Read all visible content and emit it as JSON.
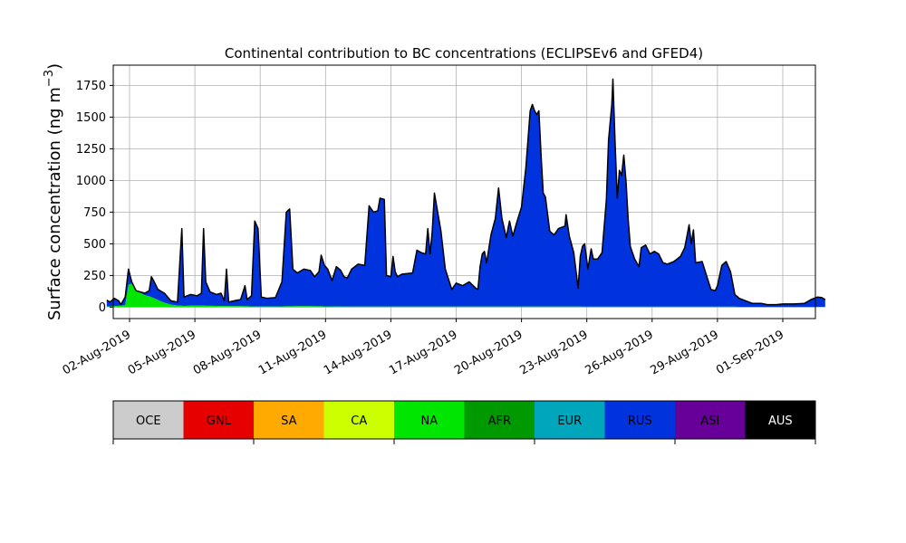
{
  "chart_data": {
    "type": "area",
    "title": "Continental contribution to BC concentrations (ECLIPSEv6 and GFED4)",
    "ylabel": "Surface concentration (ng m",
    "ylabel_sup": "−3",
    "ylabel_close": ")",
    "xlabel": "",
    "x_unit": "days (decimal) from 01-Aug-2019",
    "xlim": [
      0.25,
      32.5
    ],
    "ylim": [
      -90,
      1910
    ],
    "grid": true,
    "x_ticks": [
      {
        "x": 1,
        "label": "02-Aug-2019"
      },
      {
        "x": 4,
        "label": "05-Aug-2019"
      },
      {
        "x": 7,
        "label": "08-Aug-2019"
      },
      {
        "x": 10,
        "label": "11-Aug-2019"
      },
      {
        "x": 13,
        "label": "14-Aug-2019"
      },
      {
        "x": 16,
        "label": "17-Aug-2019"
      },
      {
        "x": 19,
        "label": "20-Aug-2019"
      },
      {
        "x": 22,
        "label": "23-Aug-2019"
      },
      {
        "x": 25,
        "label": "26-Aug-2019"
      },
      {
        "x": 28,
        "label": "29-Aug-2019"
      },
      {
        "x": 31,
        "label": "01-Sep-2019"
      }
    ],
    "y_ticks": [
      0,
      250,
      500,
      750,
      1000,
      1250,
      1500,
      1750
    ],
    "legend_position": "below",
    "legend": [
      {
        "name": "OCE",
        "color": "#cccccc"
      },
      {
        "name": "GNL",
        "color": "#e60000"
      },
      {
        "name": "SA",
        "color": "#ffaa00"
      },
      {
        "name": "CA",
        "color": "#ccff00"
      },
      {
        "name": "NA",
        "color": "#00e600"
      },
      {
        "name": "AFR",
        "color": "#009900"
      },
      {
        "name": "EUR",
        "color": "#00a6bb"
      },
      {
        "name": "RUS",
        "color": "#0033dd"
      },
      {
        "name": "ASI",
        "color": "#660099"
      },
      {
        "name": "AUS",
        "color": "#000000"
      }
    ],
    "series": [
      {
        "name": "NA",
        "color": "#00e600",
        "points": [
          [
            -0.05,
            5
          ],
          [
            0.3,
            8
          ],
          [
            0.8,
            15
          ],
          [
            1.0,
            230
          ],
          [
            1.2,
            140
          ],
          [
            1.6,
            100
          ],
          [
            2.0,
            80
          ],
          [
            2.5,
            40
          ],
          [
            3.0,
            15
          ],
          [
            3.5,
            10
          ],
          [
            4.0,
            12
          ],
          [
            5.0,
            10
          ],
          [
            6.0,
            8
          ],
          [
            7.0,
            5
          ],
          [
            9.0,
            8
          ],
          [
            11.0,
            5
          ],
          [
            31.0,
            3
          ]
        ]
      },
      {
        "name": "RUS",
        "color": "#0033dd",
        "points": [
          [
            -0.05,
            55
          ],
          [
            0.1,
            40
          ],
          [
            0.3,
            70
          ],
          [
            0.5,
            50
          ],
          [
            0.6,
            20
          ],
          [
            0.8,
            80
          ],
          [
            0.95,
            300
          ],
          [
            1.1,
            200
          ],
          [
            1.3,
            130
          ],
          [
            1.7,
            110
          ],
          [
            1.9,
            130
          ],
          [
            2.0,
            240
          ],
          [
            2.1,
            210
          ],
          [
            2.3,
            140
          ],
          [
            2.6,
            110
          ],
          [
            2.9,
            50
          ],
          [
            3.2,
            40
          ],
          [
            3.4,
            620
          ],
          [
            3.5,
            80
          ],
          [
            3.8,
            100
          ],
          [
            4.1,
            90
          ],
          [
            4.3,
            110
          ],
          [
            4.4,
            620
          ],
          [
            4.5,
            200
          ],
          [
            4.7,
            120
          ],
          [
            5.0,
            100
          ],
          [
            5.2,
            110
          ],
          [
            5.35,
            50
          ],
          [
            5.45,
            300
          ],
          [
            5.55,
            40
          ],
          [
            5.8,
            50
          ],
          [
            6.1,
            60
          ],
          [
            6.3,
            170
          ],
          [
            6.4,
            60
          ],
          [
            6.6,
            90
          ],
          [
            6.75,
            680
          ],
          [
            6.9,
            620
          ],
          [
            7.05,
            80
          ],
          [
            7.3,
            70
          ],
          [
            7.7,
            75
          ],
          [
            8.0,
            200
          ],
          [
            8.2,
            750
          ],
          [
            8.35,
            775
          ],
          [
            8.5,
            300
          ],
          [
            8.7,
            270
          ],
          [
            9.0,
            300
          ],
          [
            9.3,
            290
          ],
          [
            9.5,
            240
          ],
          [
            9.7,
            280
          ],
          [
            9.8,
            410
          ],
          [
            9.95,
            330
          ],
          [
            10.1,
            300
          ],
          [
            10.3,
            210
          ],
          [
            10.5,
            320
          ],
          [
            10.7,
            290
          ],
          [
            10.85,
            240
          ],
          [
            11.0,
            230
          ],
          [
            11.2,
            300
          ],
          [
            11.5,
            340
          ],
          [
            11.8,
            330
          ],
          [
            12.0,
            800
          ],
          [
            12.2,
            750
          ],
          [
            12.4,
            760
          ],
          [
            12.5,
            860
          ],
          [
            12.7,
            850
          ],
          [
            12.8,
            250
          ],
          [
            13.0,
            240
          ],
          [
            13.1,
            400
          ],
          [
            13.2,
            280
          ],
          [
            13.3,
            240
          ],
          [
            13.5,
            260
          ],
          [
            14.0,
            270
          ],
          [
            14.2,
            450
          ],
          [
            14.4,
            430
          ],
          [
            14.6,
            420
          ],
          [
            14.7,
            620
          ],
          [
            14.8,
            420
          ],
          [
            14.9,
            600
          ],
          [
            15.0,
            900
          ],
          [
            15.15,
            750
          ],
          [
            15.3,
            600
          ],
          [
            15.5,
            300
          ],
          [
            15.8,
            140
          ],
          [
            16.0,
            190
          ],
          [
            16.3,
            170
          ],
          [
            16.6,
            200
          ],
          [
            16.9,
            150
          ],
          [
            17.0,
            140
          ],
          [
            17.1,
            320
          ],
          [
            17.2,
            420
          ],
          [
            17.3,
            440
          ],
          [
            17.4,
            350
          ],
          [
            17.6,
            570
          ],
          [
            17.8,
            700
          ],
          [
            17.95,
            940
          ],
          [
            18.1,
            700
          ],
          [
            18.3,
            550
          ],
          [
            18.45,
            680
          ],
          [
            18.6,
            560
          ],
          [
            18.8,
            680
          ],
          [
            19.0,
            790
          ],
          [
            19.2,
            1100
          ],
          [
            19.4,
            1550
          ],
          [
            19.5,
            1600
          ],
          [
            19.6,
            1550
          ],
          [
            19.7,
            1520
          ],
          [
            19.8,
            1550
          ],
          [
            19.9,
            1200
          ],
          [
            20.0,
            900
          ],
          [
            20.1,
            870
          ],
          [
            20.3,
            600
          ],
          [
            20.5,
            570
          ],
          [
            20.7,
            620
          ],
          [
            21.0,
            640
          ],
          [
            21.05,
            730
          ],
          [
            21.2,
            560
          ],
          [
            21.4,
            430
          ],
          [
            21.6,
            150
          ],
          [
            21.7,
            400
          ],
          [
            21.8,
            480
          ],
          [
            21.9,
            500
          ],
          [
            22.05,
            300
          ],
          [
            22.2,
            460
          ],
          [
            22.3,
            380
          ],
          [
            22.5,
            380
          ],
          [
            22.7,
            430
          ],
          [
            22.9,
            850
          ],
          [
            23.0,
            1320
          ],
          [
            23.15,
            1600
          ],
          [
            23.2,
            1800
          ],
          [
            23.3,
            1300
          ],
          [
            23.4,
            860
          ],
          [
            23.5,
            1080
          ],
          [
            23.6,
            1040
          ],
          [
            23.7,
            1200
          ],
          [
            23.8,
            1000
          ],
          [
            23.9,
            700
          ],
          [
            24.0,
            480
          ],
          [
            24.2,
            380
          ],
          [
            24.4,
            320
          ],
          [
            24.5,
            470
          ],
          [
            24.7,
            490
          ],
          [
            24.9,
            420
          ],
          [
            25.1,
            440
          ],
          [
            25.3,
            420
          ],
          [
            25.5,
            350
          ],
          [
            25.7,
            340
          ],
          [
            26.0,
            360
          ],
          [
            26.3,
            400
          ],
          [
            26.5,
            470
          ],
          [
            26.7,
            650
          ],
          [
            26.8,
            500
          ],
          [
            26.9,
            610
          ],
          [
            27.0,
            350
          ],
          [
            27.3,
            360
          ],
          [
            27.5,
            250
          ],
          [
            27.7,
            140
          ],
          [
            27.9,
            130
          ],
          [
            28.0,
            170
          ],
          [
            28.2,
            330
          ],
          [
            28.4,
            360
          ],
          [
            28.6,
            280
          ],
          [
            28.8,
            100
          ],
          [
            29.0,
            70
          ],
          [
            29.3,
            50
          ],
          [
            29.6,
            30
          ],
          [
            30.0,
            30
          ],
          [
            30.3,
            20
          ],
          [
            30.7,
            20
          ],
          [
            31.0,
            25
          ],
          [
            31.5,
            25
          ],
          [
            32.0,
            30
          ],
          [
            32.3,
            60
          ],
          [
            32.6,
            80
          ],
          [
            32.8,
            75
          ],
          [
            32.95,
            60
          ]
        ]
      }
    ]
  }
}
